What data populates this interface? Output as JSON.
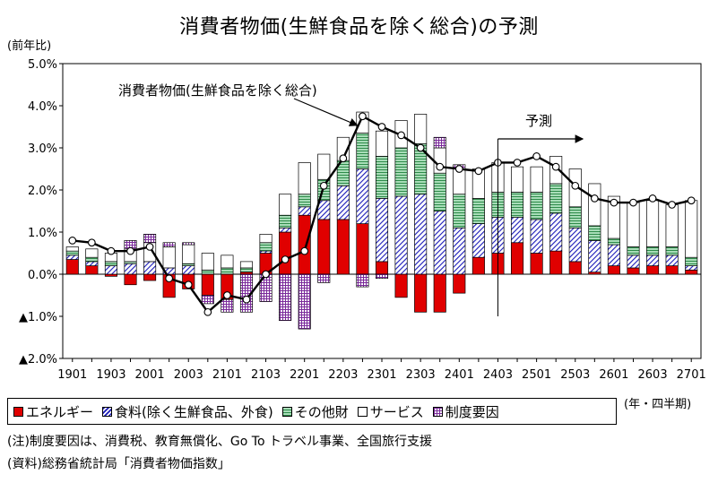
{
  "page": {
    "title": "消費者物価(生鮮食品を除く総合)の予測",
    "y_unit": "(前年比)",
    "x_unit": "(年・四半期)",
    "note1": "(注)制度要因は、消費税、教育無償化、Go To トラベル事業、全国旅行支援",
    "note2": "(資料)総務省統計局「消費者物価指数」"
  },
  "legend": {
    "energy": "エネルギー",
    "food": "食料(除く生鮮食品、外食)",
    "other": "その他財",
    "service": "サービス",
    "policy": "制度要因"
  },
  "colors": {
    "energy": "#e00000",
    "food": "#1a1ab8",
    "other": "#2e8b4a",
    "policy": "#7a2a9a",
    "line": "#000000"
  },
  "chart_data": {
    "type": "bar",
    "title": "消費者物価(生鮮食品を除く総合)の予測",
    "ylabel": "(前年比)",
    "xlabel": "(年・四半期)",
    "ylim": [
      -2.0,
      5.0
    ],
    "ytick_values": [
      5.0,
      4.0,
      3.0,
      2.0,
      1.0,
      0.0,
      -1.0,
      -2.0
    ],
    "ytick_labels": [
      "5.0%",
      "4.0%",
      "3.0%",
      "2.0%",
      "1.0%",
      "0.0%",
      "▲1.0%",
      "▲2.0%"
    ],
    "categories": [
      "1901",
      "1902",
      "1903",
      "1904",
      "2001",
      "2002",
      "2003",
      "2004",
      "2101",
      "2102",
      "2103",
      "2104",
      "2201",
      "2202",
      "2203",
      "2204",
      "2301",
      "2302",
      "2303",
      "2304",
      "2401",
      "2402",
      "2403",
      "2404",
      "2501",
      "2502",
      "2503",
      "2504",
      "2601",
      "2602",
      "2603",
      "2604",
      "2701"
    ],
    "xtick_labels": [
      "1901",
      "1903",
      "2001",
      "2003",
      "2101",
      "2103",
      "2201",
      "2203",
      "2301",
      "2303",
      "2401",
      "2403",
      "2501",
      "2503",
      "2601",
      "2603",
      "2701"
    ],
    "stacked": true,
    "series": [
      {
        "name": "エネルギー",
        "values": [
          0.35,
          0.2,
          -0.05,
          -0.25,
          -0.15,
          -0.55,
          -0.35,
          -0.5,
          -0.6,
          0.05,
          0.5,
          1.0,
          1.4,
          1.3,
          1.3,
          1.2,
          0.3,
          -0.55,
          -0.9,
          -0.9,
          -0.45,
          0.4,
          0.5,
          0.75,
          0.5,
          0.55,
          0.3,
          0.05,
          0.2,
          0.15,
          0.2,
          0.2,
          0.1
        ]
      },
      {
        "name": "食料(除く生鮮食品、外食)",
        "values": [
          0.1,
          0.1,
          0.2,
          0.25,
          0.3,
          0.15,
          0.2,
          0.0,
          0.0,
          0.0,
          0.05,
          0.1,
          0.2,
          0.45,
          0.8,
          1.3,
          1.5,
          1.85,
          1.9,
          1.5,
          1.1,
          0.8,
          0.85,
          0.6,
          0.8,
          0.9,
          0.8,
          0.75,
          0.5,
          0.3,
          0.25,
          0.25,
          0.1
        ]
      },
      {
        "name": "その他財",
        "values": [
          0.1,
          0.1,
          0.1,
          0.05,
          0.0,
          0.0,
          0.05,
          0.1,
          0.15,
          0.1,
          0.2,
          0.3,
          0.3,
          0.5,
          0.6,
          0.85,
          1.0,
          1.15,
          1.2,
          0.9,
          0.8,
          0.6,
          0.6,
          0.6,
          0.65,
          0.7,
          0.5,
          0.35,
          0.15,
          0.2,
          0.2,
          0.2,
          0.2
        ]
      },
      {
        "name": "サービス",
        "values": [
          0.1,
          0.2,
          0.2,
          0.3,
          0.45,
          0.5,
          0.45,
          0.4,
          0.3,
          0.15,
          0.2,
          0.5,
          0.75,
          0.6,
          0.55,
          0.5,
          0.6,
          0.65,
          0.7,
          0.6,
          0.6,
          0.7,
          0.7,
          0.6,
          0.6,
          0.65,
          0.9,
          1.0,
          1.0,
          1.05,
          1.1,
          1.0,
          1.35
        ]
      },
      {
        "name": "制度要因",
        "values": [
          0.0,
          0.0,
          0.0,
          0.2,
          0.2,
          0.1,
          0.05,
          -0.2,
          -0.3,
          -0.9,
          -0.65,
          -1.1,
          -1.3,
          -0.2,
          0.0,
          -0.3,
          -0.1,
          0.0,
          0.0,
          0.25,
          0.1,
          0.0,
          0.0,
          0.0,
          0.0,
          0.0,
          0.0,
          0.0,
          0.0,
          0.0,
          0.0,
          0.0,
          0.0
        ]
      }
    ],
    "line": {
      "name": "消費者物価(生鮮食品を除く総合)",
      "values": [
        0.8,
        0.75,
        0.55,
        0.55,
        0.65,
        -0.1,
        -0.25,
        -0.9,
        -0.5,
        -0.6,
        0.0,
        0.35,
        0.55,
        2.1,
        2.75,
        3.75,
        3.5,
        3.3,
        3.0,
        2.55,
        2.5,
        2.45,
        2.65,
        2.65,
        2.8,
        2.55,
        2.1,
        1.8,
        1.7,
        1.7,
        1.8,
        1.65,
        1.75
      ]
    },
    "annotations": [
      {
        "text": "消費者物価(生鮮食品を除く総合)",
        "target_category": "2204"
      },
      {
        "text": "予測",
        "start_category": "2403"
      }
    ],
    "grid": false
  }
}
